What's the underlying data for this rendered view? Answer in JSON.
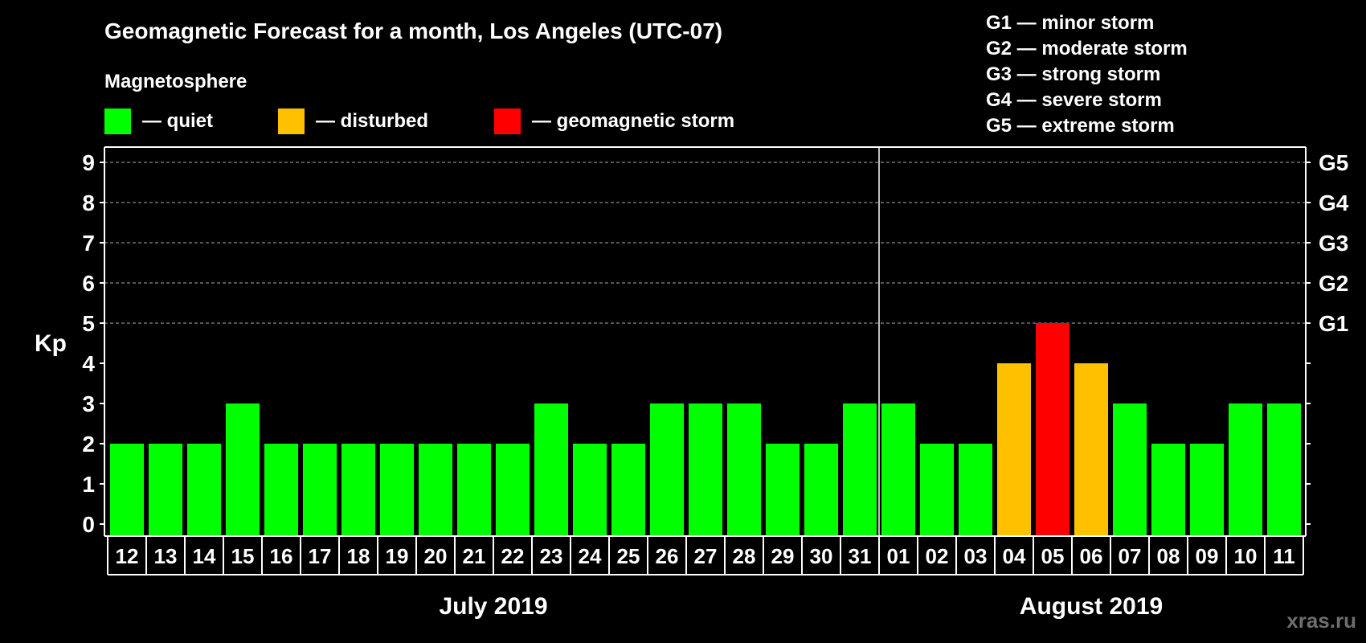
{
  "chart_data": {
    "type": "bar",
    "title": "Geomagnetic Forecast for a month, Los Angeles (UTC-07)",
    "ylabel": "Kp",
    "ylim": [
      0,
      9
    ],
    "y_ticks": [
      "0",
      "1",
      "2",
      "3",
      "4",
      "5",
      "6",
      "7",
      "8",
      "9"
    ],
    "gridlines_at": [
      5,
      6,
      7,
      8,
      9
    ],
    "storm_axis": [
      {
        "kp": 5,
        "label": "G1"
      },
      {
        "kp": 6,
        "label": "G2"
      },
      {
        "kp": 7,
        "label": "G3"
      },
      {
        "kp": 8,
        "label": "G4"
      },
      {
        "kp": 9,
        "label": "G5"
      }
    ],
    "categories": [
      "12",
      "13",
      "14",
      "15",
      "16",
      "17",
      "18",
      "19",
      "20",
      "21",
      "22",
      "23",
      "24",
      "25",
      "26",
      "27",
      "28",
      "29",
      "30",
      "31",
      "01",
      "02",
      "03",
      "04",
      "05",
      "06",
      "07",
      "08",
      "09",
      "10",
      "11"
    ],
    "values": [
      2,
      2,
      2,
      3,
      2,
      2,
      2,
      2,
      2,
      2,
      2,
      3,
      2,
      2,
      3,
      3,
      3,
      2,
      2,
      3,
      3,
      2,
      2,
      4,
      5,
      4,
      3,
      2,
      2,
      3,
      3
    ],
    "status": [
      "quiet",
      "quiet",
      "quiet",
      "quiet",
      "quiet",
      "quiet",
      "quiet",
      "quiet",
      "quiet",
      "quiet",
      "quiet",
      "quiet",
      "quiet",
      "quiet",
      "quiet",
      "quiet",
      "quiet",
      "quiet",
      "quiet",
      "quiet",
      "quiet",
      "quiet",
      "quiet",
      "disturbed",
      "storm",
      "disturbed",
      "quiet",
      "quiet",
      "quiet",
      "quiet",
      "quiet"
    ],
    "months": [
      {
        "label": "July 2019",
        "first_index": 0,
        "count": 20
      },
      {
        "label": "August 2019",
        "first_index": 20,
        "count": 11
      }
    ],
    "legend_title": "Magnetosphere",
    "legend": [
      {
        "key": "quiet",
        "label": "— quiet",
        "color": "#00ff00"
      },
      {
        "key": "disturbed",
        "label": "— disturbed",
        "color": "#ffc000"
      },
      {
        "key": "storm",
        "label": "— geomagnetic storm",
        "color": "#ff0000"
      }
    ],
    "storm_scale": [
      "G1 — minor storm",
      "G2 — moderate storm",
      "G3 — strong storm",
      "G4 — severe storm",
      "G5 — extreme storm"
    ]
  },
  "watermark": "xras.ru",
  "colors": {
    "background": "#000000",
    "foreground": "#ffffff",
    "grid": "#8a8a8a"
  }
}
